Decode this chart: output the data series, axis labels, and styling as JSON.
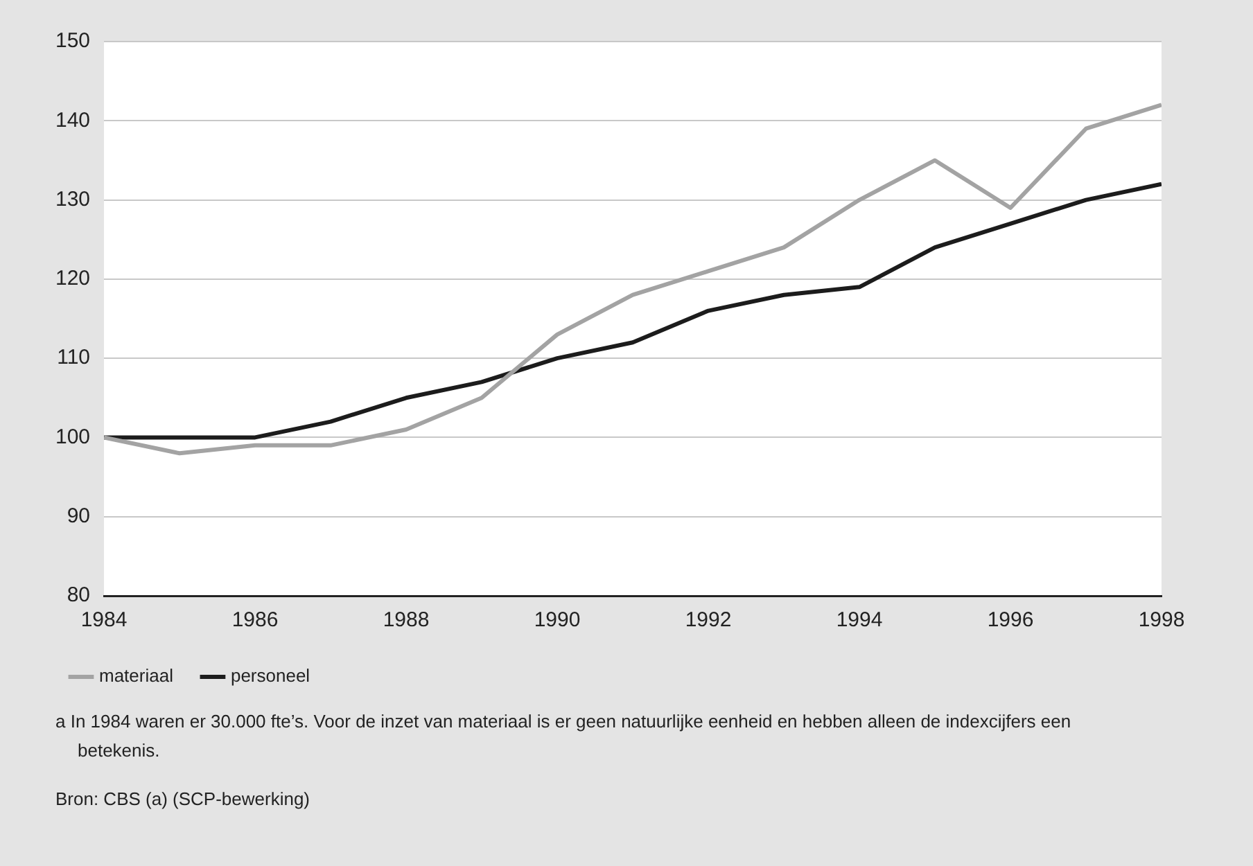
{
  "chart_data": {
    "type": "line",
    "x": [
      1984,
      1985,
      1986,
      1987,
      1988,
      1989,
      1990,
      1991,
      1992,
      1993,
      1994,
      1995,
      1996,
      1997,
      1998
    ],
    "series": [
      {
        "name": "materiaal",
        "color": "#a3a3a3",
        "values": [
          100,
          98,
          99,
          99,
          101,
          105,
          113,
          118,
          121,
          124,
          130,
          135,
          129,
          139,
          142
        ]
      },
      {
        "name": "personeel",
        "color": "#1c1c1c",
        "values": [
          100,
          100,
          100,
          102,
          105,
          107,
          110,
          112,
          116,
          118,
          119,
          124,
          127,
          130,
          132
        ]
      }
    ],
    "xlim": [
      1984,
      1998
    ],
    "xticks": [
      1984,
      1986,
      1988,
      1990,
      1992,
      1994,
      1996,
      1998
    ],
    "ylim": [
      80,
      150
    ],
    "yticks": [
      80,
      90,
      100,
      110,
      120,
      130,
      140,
      150
    ],
    "grid": "y",
    "legend": "bottom left",
    "marker": "none",
    "line_style": "solid",
    "annotations": [
      "a  In 1984 waren er 30.000 fte’s. Voor de inzet van materiaal is er geen natuurlijke eenheid en hebben alleen de indexcijfers een betekenis.",
      "Bron: CBS (a) (SCP-bewerking)"
    ]
  }
}
